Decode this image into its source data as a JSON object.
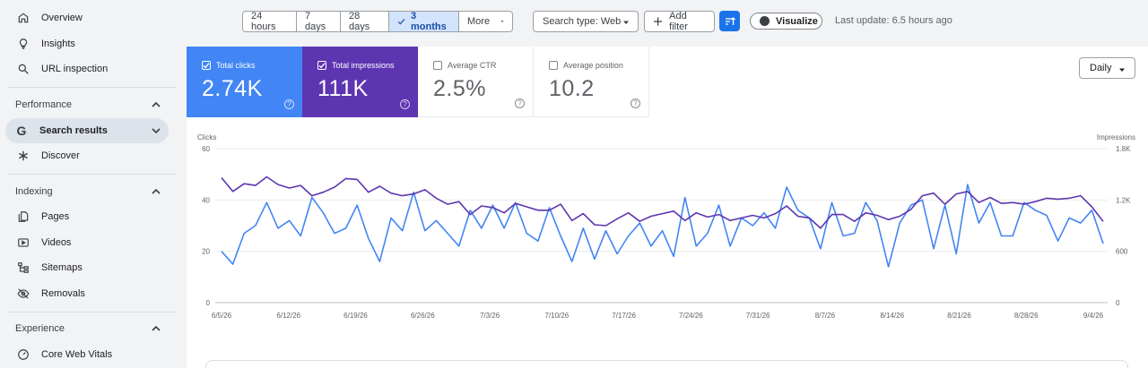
{
  "sidebar": {
    "items_top": [
      {
        "label": "Overview",
        "icon": "home-icon"
      },
      {
        "label": "Insights",
        "icon": "lightbulb-icon"
      },
      {
        "label": "URL inspection",
        "icon": "search-icon"
      }
    ],
    "performance": {
      "label": "Performance",
      "items": [
        {
          "label": "Search results",
          "icon": "google-g-icon"
        },
        {
          "label": "Discover",
          "icon": "asterisk-icon"
        }
      ]
    },
    "indexing": {
      "label": "Indexing",
      "items": [
        {
          "label": "Pages",
          "icon": "pages-icon"
        },
        {
          "label": "Videos",
          "icon": "video-icon"
        },
        {
          "label": "Sitemaps",
          "icon": "sitemap-icon"
        },
        {
          "label": "Removals",
          "icon": "eye-off-icon"
        }
      ]
    },
    "experience": {
      "label": "Experience",
      "items": [
        {
          "label": "Core Web Vitals",
          "icon": "gauge-icon"
        }
      ]
    }
  },
  "toolbar": {
    "ranges": [
      "24 hours",
      "7 days",
      "28 days",
      "3 months",
      "More"
    ],
    "selected_range": "3 months",
    "search_type": "Search type: Web",
    "add_filter": "Add filter",
    "visualize": "Visualize",
    "last_update": "Last update: 6.5 hours ago"
  },
  "metrics": {
    "clicks": {
      "label": "Total clicks",
      "value": "2.74K",
      "checked": true
    },
    "impressions": {
      "label": "Total impressions",
      "value": "111K",
      "checked": true
    },
    "ctr": {
      "label": "Average CTR",
      "value": "2.5%",
      "checked": false
    },
    "position": {
      "label": "Average position",
      "value": "10.2",
      "checked": false
    }
  },
  "granularity": "Daily",
  "colors": {
    "clicks": "#4285f4",
    "impressions": "#5e35b1",
    "accent": "#1a73e8"
  },
  "chart_data": {
    "type": "line",
    "ylabel_left": "Clicks",
    "ylabel_right": "Impressions",
    "y_left_ticks": [
      "60",
      "40",
      "20",
      "0"
    ],
    "y_right_ticks": [
      "1.8K",
      "1.2K",
      "600",
      "0"
    ],
    "ylim_left": [
      0,
      60
    ],
    "ylim_right": [
      0,
      1800
    ],
    "x_ticks": [
      "6/5/26",
      "6/12/26",
      "6/19/26",
      "6/26/26",
      "7/3/26",
      "7/10/26",
      "7/17/26",
      "7/24/26",
      "7/31/26",
      "8/7/26",
      "8/14/26",
      "8/21/26",
      "8/28/26",
      "9/4/26"
    ],
    "grid": true,
    "series": [
      {
        "name": "Clicks",
        "axis": "left",
        "values": [
          20,
          15,
          27,
          30,
          39,
          29,
          32,
          26,
          41,
          35,
          27,
          29,
          38,
          25,
          16,
          33,
          28,
          43,
          28,
          32,
          27,
          22,
          36,
          29,
          38,
          29,
          39,
          27,
          24,
          37,
          26,
          16,
          29,
          17,
          28,
          19,
          26,
          31,
          22,
          28,
          18,
          41,
          22,
          27,
          38,
          22,
          33,
          30,
          35,
          29,
          45,
          36,
          33,
          21,
          39,
          26,
          27,
          39,
          32,
          14,
          31,
          38,
          40,
          21,
          38,
          19,
          46,
          31,
          39,
          26,
          26,
          39,
          36,
          34,
          24,
          33,
          31,
          36,
          23
        ]
      },
      {
        "name": "Impressions",
        "axis": "right",
        "values": [
          1460,
          1300,
          1390,
          1370,
          1470,
          1380,
          1340,
          1370,
          1250,
          1290,
          1350,
          1450,
          1440,
          1290,
          1360,
          1280,
          1250,
          1270,
          1320,
          1220,
          1150,
          1180,
          1030,
          1130,
          1110,
          1050,
          1160,
          1120,
          1080,
          1080,
          1150,
          960,
          1040,
          910,
          900,
          980,
          1050,
          950,
          1010,
          1040,
          1070,
          960,
          1050,
          1000,
          1030,
          960,
          990,
          1020,
          990,
          1040,
          1130,
          1010,
          990,
          870,
          1030,
          1030,
          950,
          1050,
          1020,
          970,
          1010,
          1090,
          1250,
          1280,
          1150,
          1270,
          1300,
          1170,
          1230,
          1160,
          1170,
          1150,
          1180,
          1220,
          1210,
          1220,
          1250,
          1120,
          950
        ]
      }
    ]
  }
}
